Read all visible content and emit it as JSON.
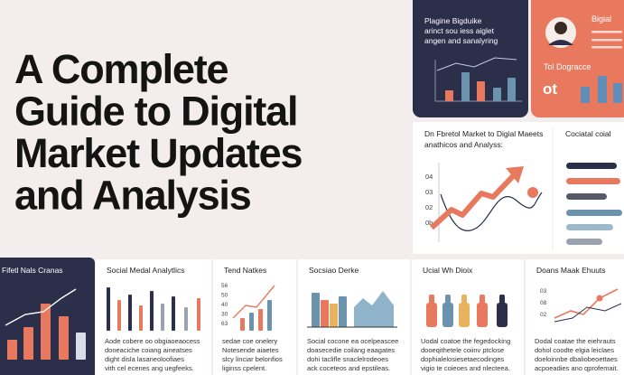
{
  "title_lines": [
    "A Complete",
    "Guide to Digital",
    "Market Updates",
    "and Analysis"
  ],
  "top_dark_card": {
    "lines": [
      "Plagine Bigduike",
      "arinct sou iess aiglet",
      "angen and sanalyring"
    ]
  },
  "top_orange_card": {
    "name": "Bigial",
    "subtitle": "Tol Dogracce",
    "value": "ot"
  },
  "market_panel": {
    "title_lines": [
      "Dn Fbretol Market to Digial Maeets",
      "anathicos and Analyss:"
    ],
    "ticks": [
      "04",
      "03",
      "02",
      "0b"
    ],
    "side_title": "Cociatal coial"
  },
  "bottom_cards": [
    {
      "title": "Fifetl Nals Cranas"
    },
    {
      "title": "Social Medal Analytlics",
      "lines": [
        "Aode cobere oo obgiaoeaocess",
        "doneaciche coiang aineatses",
        "dight disla lasaneoloofiaes",
        "vith cel ecenes ang uegfeeks."
      ]
    },
    {
      "title": "Tend Natkes",
      "ticks": [
        "56",
        "50",
        "40",
        "30",
        "63"
      ],
      "lines": [
        "sedae coe onelery",
        "Notesende aiaetes",
        "slcy linciar belonfios",
        "liginss cpelent."
      ]
    },
    {
      "title": "Socsiao Derke",
      "lines": [
        "Social cocone ea ocelpeascee",
        "doasecedie coilang eaagates",
        "dohi taclifle snaclelrodeoes",
        "ack coceteos and epstileas."
      ]
    },
    {
      "title": "Ucial Wh Dioix",
      "lines": [
        "Uodal coatoe the fegedocking",
        "dooeqithetele coiinv ptclose",
        "dophialelosiesetaecodinges",
        "vigio te coieoes and nlecteea."
      ]
    },
    {
      "title": "Doans Maak Ehuuts",
      "ticks": [
        "03",
        "08",
        "02"
      ],
      "lines": [
        "Dodal coatae the eiehrauts",
        "dohol coodte elgia leiclaes",
        "doeloinnbe dbaliobeoettaes",
        "acpoeadies ano qprofemait."
      ]
    }
  ]
}
